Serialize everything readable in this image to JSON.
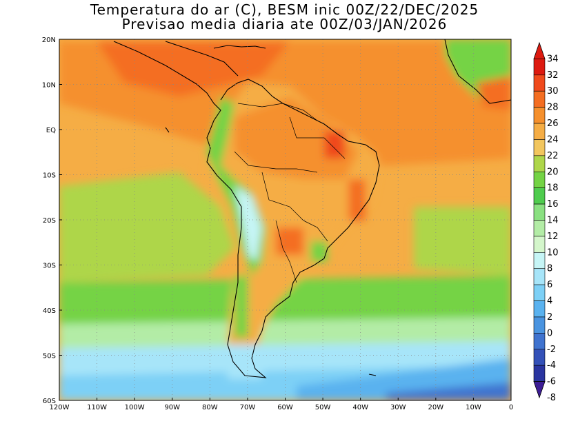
{
  "title_line1": "Temperatura do ar (C), BESM inic 00Z/22/DEC/2025",
  "title_line2": "Previsao media diaria ate 00Z/03/JAN/2026",
  "lat_labels": [
    "20N",
    "10N",
    "EQ",
    "10S",
    "20S",
    "30S",
    "40S",
    "50S",
    "60S"
  ],
  "lon_labels": [
    "120W",
    "110W",
    "100W",
    "90W",
    "80W",
    "70W",
    "60W",
    "50W",
    "40W",
    "30W",
    "20W",
    "10W",
    "0"
  ],
  "colorbar": {
    "labels": [
      "34",
      "32",
      "30",
      "28",
      "26",
      "24",
      "22",
      "20",
      "18",
      "16",
      "14",
      "12",
      "10",
      "8",
      "6",
      "4",
      "2",
      "0",
      "-2",
      "-4",
      "-6",
      "-8"
    ],
    "colors": [
      "#dd1a10",
      "#f04a1c",
      "#f46e22",
      "#f5902d",
      "#f5ad45",
      "#f2c65e",
      "#aed64a",
      "#74d345",
      "#4fcc4e",
      "#8ae081",
      "#b3eca6",
      "#d4f6cb",
      "#c6f5f6",
      "#a7e5f9",
      "#7dd0f6",
      "#5ab2ef",
      "#4a94e0",
      "#3f73cf",
      "#3451b8",
      "#2a35a0",
      "#3d1d95"
    ]
  },
  "regions": [
    {
      "name": "southern-ocean-cold",
      "color": "#5ab2ef"
    },
    {
      "name": "subantarctic",
      "color": "#a7e5f9"
    },
    {
      "name": "mid-latitude-green",
      "color": "#74d345"
    },
    {
      "name": "south-pacific",
      "color": "#aed64a"
    },
    {
      "name": "tropical-warm",
      "color": "#f5ad45"
    },
    {
      "name": "equatorial-hot",
      "color": "#f5902d"
    },
    {
      "name": "andes-cold",
      "color": "#c6f5f6"
    },
    {
      "name": "ne-brazil-hot",
      "color": "#f04a1c"
    }
  ]
}
